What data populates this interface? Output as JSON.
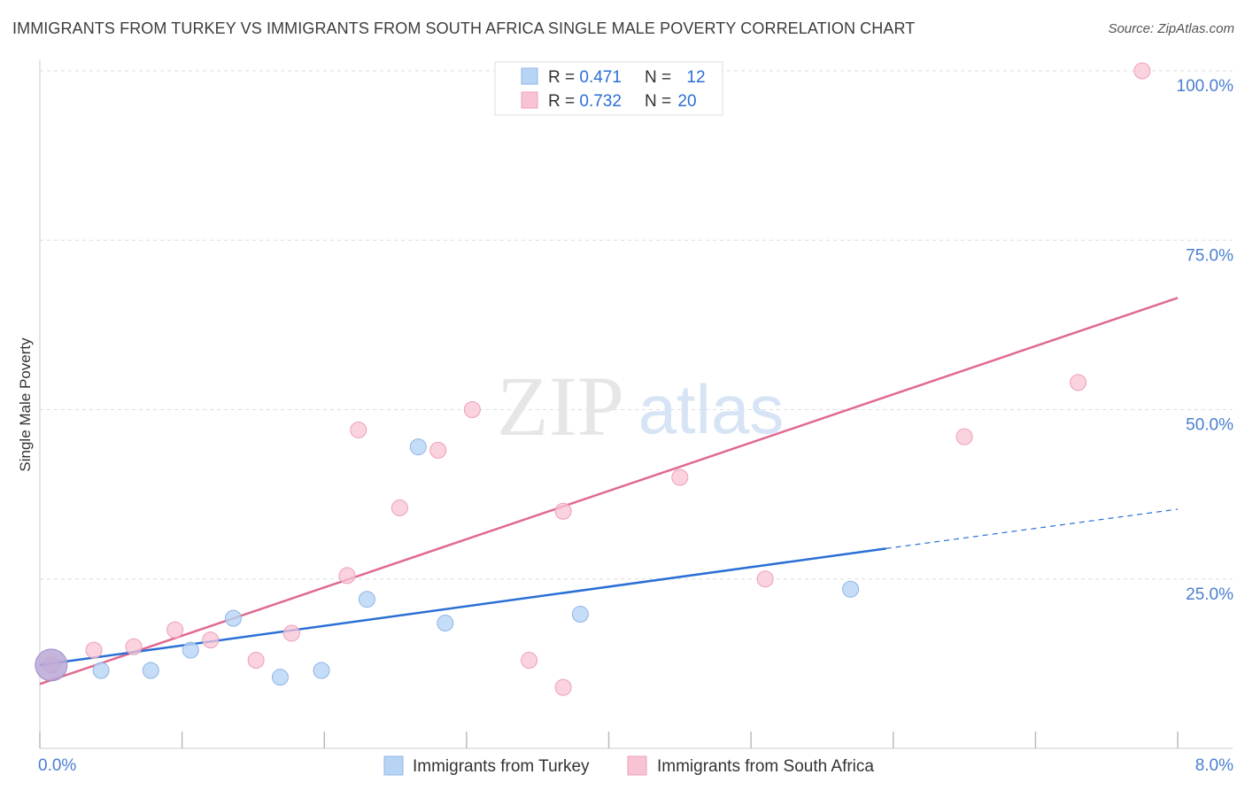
{
  "title": "IMMIGRANTS FROM TURKEY VS IMMIGRANTS FROM SOUTH AFRICA SINGLE MALE POVERTY CORRELATION CHART",
  "source": "Source: ZipAtlas.com",
  "watermark": {
    "zip": "ZIP",
    "atlas": "atlas"
  },
  "colors": {
    "turkey_fill": "#b8d4f5",
    "turkey_stroke": "#8fb5e6",
    "turkey_line": "#2a6fd6",
    "sa_fill": "#f8c4d4",
    "sa_stroke": "#ee9fb8",
    "sa_line": "#e0698f",
    "axis_text": "#4a7fd0",
    "grid": "#dddddd"
  },
  "legend": {
    "rows": [
      {
        "r_label": "R = ",
        "r_value": "0.471",
        "n_label": "N = ",
        "n_value": "12"
      },
      {
        "r_label": "R = ",
        "r_value": "0.732",
        "n_label": "N = ",
        "n_value": "20"
      }
    ]
  },
  "bottom_legend": [
    "Immigrants from Turkey",
    "Immigrants from South Africa"
  ],
  "chart_data": {
    "type": "scatter",
    "title": "IMMIGRANTS FROM TURKEY VS IMMIGRANTS FROM SOUTH AFRICA SINGLE MALE POVERTY CORRELATION CHART",
    "xlabel": "",
    "ylabel": "Single Male Poverty",
    "xlim": [
      0,
      8
    ],
    "ylim": [
      0,
      105
    ],
    "x_tick_labels": [
      "0.0%",
      "8.0%"
    ],
    "y_ticks": [
      25,
      50,
      75,
      100
    ],
    "y_tick_labels": [
      "25.0%",
      "50.0%",
      "75.0%",
      "100.0%"
    ],
    "series": [
      {
        "name": "Immigrants from Turkey",
        "R": 0.471,
        "N": 12,
        "points": [
          [
            0.08,
            12.3
          ],
          [
            0.43,
            11.5
          ],
          [
            0.78,
            11.5
          ],
          [
            1.06,
            14.5
          ],
          [
            1.36,
            19.2
          ],
          [
            1.69,
            10.5
          ],
          [
            1.98,
            11.5
          ],
          [
            2.3,
            22.0
          ],
          [
            2.66,
            44.5
          ],
          [
            2.85,
            18.5
          ],
          [
            3.8,
            19.8
          ],
          [
            5.7,
            23.5
          ]
        ],
        "big_point_index": 0,
        "trend": {
          "x0": 0.0,
          "y0": 12.3,
          "x1": 5.95,
          "y1": 29.5,
          "dash_to_x": 8.0,
          "dash_to_y": 35.3
        }
      },
      {
        "name": "Immigrants from South Africa",
        "R": 0.732,
        "N": 20,
        "points": [
          [
            0.08,
            12.3
          ],
          [
            0.38,
            14.5
          ],
          [
            0.66,
            15.0
          ],
          [
            0.95,
            17.5
          ],
          [
            1.2,
            16.0
          ],
          [
            1.52,
            13.0
          ],
          [
            1.77,
            17.0
          ],
          [
            2.16,
            25.5
          ],
          [
            2.24,
            47.0
          ],
          [
            2.53,
            35.5
          ],
          [
            2.8,
            44.0
          ],
          [
            3.04,
            50.0
          ],
          [
            3.44,
            13.0
          ],
          [
            3.68,
            35.0
          ],
          [
            3.68,
            9.0
          ],
          [
            4.5,
            40.0
          ],
          [
            5.1,
            25.0
          ],
          [
            6.5,
            46.0
          ],
          [
            7.3,
            54.0
          ],
          [
            7.75,
            100.0
          ]
        ],
        "trend": {
          "x0": 0.0,
          "y0": 9.5,
          "x1": 8.0,
          "y1": 66.5
        }
      }
    ]
  }
}
